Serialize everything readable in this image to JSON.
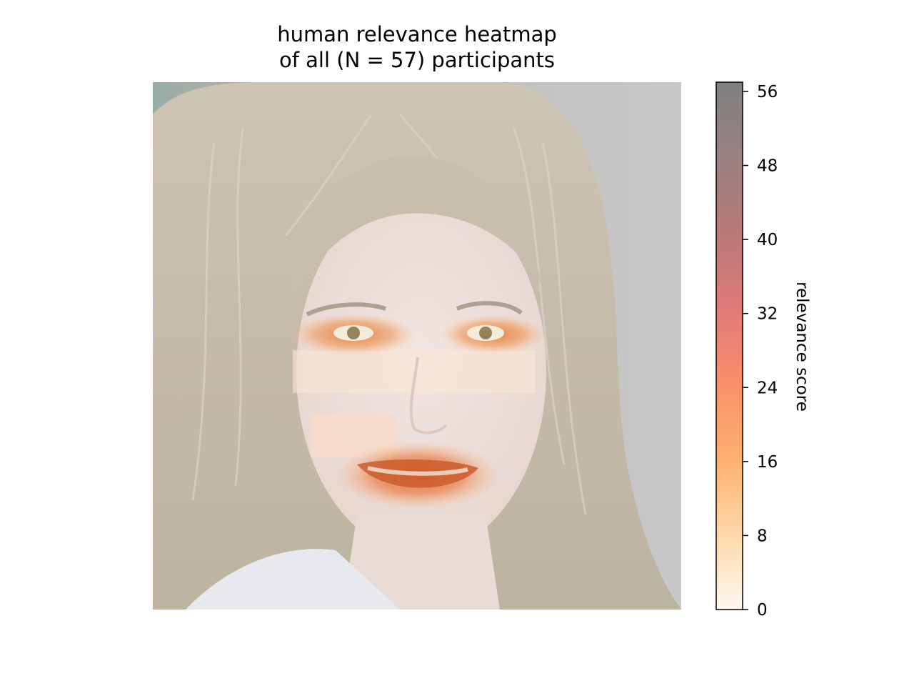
{
  "chart_data": {
    "type": "heatmap",
    "title": [
      "human relevance heatmap",
      "of all (N = 57) participants"
    ],
    "background": "photo of a face with shoulder-length blonde hair, overlaid by the relevance heatmap",
    "colorbar": {
      "label": "relevance score",
      "range": [
        0,
        57
      ],
      "ticks": [
        0,
        8,
        16,
        24,
        32,
        40,
        48,
        56
      ],
      "colormap": "Oranges-Reds-Greys blend",
      "colors": [
        "#fff8f2",
        "#ffd8a8",
        "#ffb070",
        "#f8906a",
        "#e07a78",
        "#b87a78",
        "#988080",
        "#808080"
      ]
    },
    "regions": [
      {
        "name": "left-eye",
        "value": 20
      },
      {
        "name": "right-eye",
        "value": 20
      },
      {
        "name": "mouth",
        "value": 24
      },
      {
        "name": "cheeks-band",
        "value": 4
      },
      {
        "name": "nose-area",
        "value": 3
      }
    ]
  }
}
